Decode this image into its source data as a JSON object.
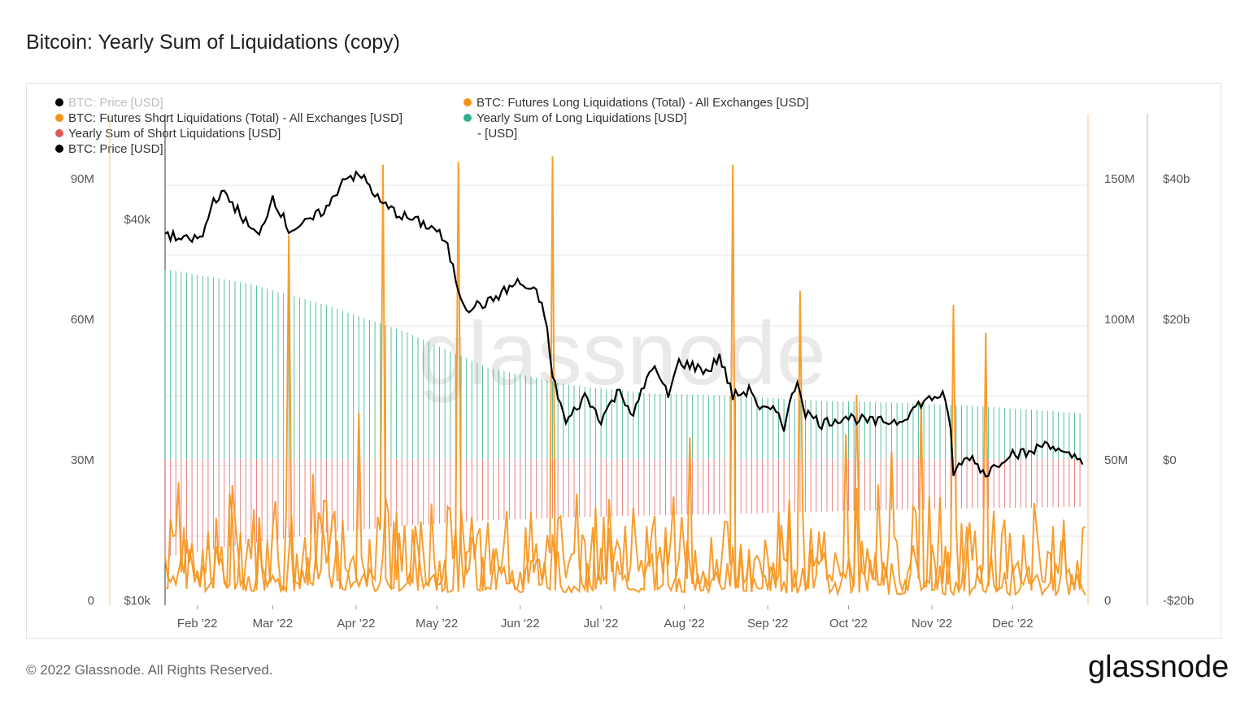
{
  "title": "Bitcoin: Yearly Sum of Liquidations (copy)",
  "footer": "© 2022 Glassnode. All Rights Reserved.",
  "brand": "glassnode",
  "watermark": "glassnode",
  "colors": {
    "price": "#000000",
    "long_liq": "#f7931a",
    "short_liq": "#f7931a",
    "yearly_long": "#2fb08e",
    "yearly_short": "#e05a5a"
  },
  "legend": [
    {
      "label": "BTC: Price [USD]",
      "color": "#000000",
      "faded": true
    },
    {
      "label": "BTC: Futures Long Liquidations (Total) - All Exchanges [USD]",
      "color": "#f7931a",
      "faded": false
    },
    {
      "label": "BTC: Futures Short Liquidations (Total) - All Exchanges [USD]",
      "color": "#f7931a",
      "faded": false
    },
    {
      "label": "Yearly Sum of Long Liquidations [USD]",
      "color": "#2fb08e",
      "faded": false
    },
    {
      "label": "- [USD]",
      "color": "",
      "faded": false
    },
    {
      "label": "Yearly Sum of Short Liquidations [USD]",
      "color": "#e05a5a",
      "faded": false
    },
    {
      "label": "BTC: Price [USD]",
      "color": "#000000",
      "faded": false
    }
  ],
  "chart_data": {
    "type": "line",
    "x_tick_labels": [
      "Feb '22",
      "Mar '22",
      "Apr '22",
      "May '22",
      "Jun '22",
      "Jul '22",
      "Aug '22",
      "Sep '22",
      "Oct '22",
      "Nov '22",
      "Dec '22"
    ],
    "axes": {
      "left_liquidations": {
        "ticks": [
          "90M",
          "60M",
          "30M",
          "0"
        ],
        "range": [
          0,
          90000000
        ]
      },
      "left_price": {
        "ticks": [
          "$40k",
          "$10k"
        ],
        "scale": "log"
      },
      "right_liquidations": {
        "ticks": [
          "150M",
          "100M",
          "50M",
          "0"
        ],
        "range": [
          0,
          150000000
        ]
      },
      "right_yearly": {
        "ticks": [
          "$40b",
          "$20b",
          "$0",
          "-$20b"
        ],
        "range": [
          -20000000000,
          40000000000
        ]
      }
    },
    "grid": true,
    "legend_position": "top-left",
    "series": [
      {
        "name": "BTC: Price [USD]",
        "axis": "left_price",
        "points": [
          [
            "2022-01-20",
            38000
          ],
          [
            "2022-01-27",
            37000
          ],
          [
            "2022-02-03",
            37500
          ],
          [
            "2022-02-07",
            43000
          ],
          [
            "2022-02-10",
            44000
          ],
          [
            "2022-02-14",
            42500
          ],
          [
            "2022-02-20",
            39000
          ],
          [
            "2022-02-24",
            37500
          ],
          [
            "2022-03-01",
            43500
          ],
          [
            "2022-03-07",
            38500
          ],
          [
            "2022-03-14",
            39500
          ],
          [
            "2022-03-22",
            42000
          ],
          [
            "2022-03-28",
            47000
          ],
          [
            "2022-04-04",
            46500
          ],
          [
            "2022-04-10",
            42500
          ],
          [
            "2022-04-18",
            40500
          ],
          [
            "2022-04-25",
            39500
          ],
          [
            "2022-05-01",
            38500
          ],
          [
            "2022-05-05",
            36000
          ],
          [
            "2022-05-09",
            31000
          ],
          [
            "2022-05-12",
            29000
          ],
          [
            "2022-05-20",
            29500
          ],
          [
            "2022-05-31",
            31800
          ],
          [
            "2022-06-07",
            30500
          ],
          [
            "2022-06-10",
            28500
          ],
          [
            "2022-06-13",
            22500
          ],
          [
            "2022-06-18",
            19000
          ],
          [
            "2022-06-25",
            21000
          ],
          [
            "2022-07-01",
            19300
          ],
          [
            "2022-07-08",
            21500
          ],
          [
            "2022-07-13",
            19500
          ],
          [
            "2022-07-20",
            23500
          ],
          [
            "2022-07-26",
            21000
          ],
          [
            "2022-07-30",
            23800
          ],
          [
            "2022-08-10",
            23000
          ],
          [
            "2022-08-14",
            24300
          ],
          [
            "2022-08-19",
            21000
          ],
          [
            "2022-08-26",
            21500
          ],
          [
            "2022-08-29",
            20000
          ],
          [
            "2022-09-05",
            19800
          ],
          [
            "2022-09-07",
            18800
          ],
          [
            "2022-09-12",
            22300
          ],
          [
            "2022-09-15",
            19800
          ],
          [
            "2022-09-21",
            19000
          ],
          [
            "2022-09-30",
            19500
          ],
          [
            "2022-10-10",
            19100
          ],
          [
            "2022-10-20",
            19200
          ],
          [
            "2022-10-28",
            20500
          ],
          [
            "2022-11-05",
            21200
          ],
          [
            "2022-11-08",
            18500
          ],
          [
            "2022-11-09",
            15900
          ],
          [
            "2022-11-15",
            16900
          ],
          [
            "2022-11-21",
            15800
          ],
          [
            "2022-11-30",
            17100
          ],
          [
            "2022-12-07",
            17000
          ],
          [
            "2022-12-14",
            17800
          ],
          [
            "2022-12-20",
            16900
          ],
          [
            "2022-12-27",
            16700
          ]
        ]
      },
      {
        "name": "BTC: Futures Long Liquidations (Total) - All Exchanges [USD]",
        "axis": "right_liquidations",
        "spikes": [
          [
            "2022-03-07",
            130000000
          ],
          [
            "2022-04-11",
            155000000
          ],
          [
            "2022-05-09",
            156000000
          ],
          [
            "2022-06-13",
            158000000
          ],
          [
            "2022-08-19",
            155000000
          ],
          [
            "2022-09-13",
            110000000
          ],
          [
            "2022-11-09",
            105000000
          ],
          [
            "2022-11-21",
            95000000
          ]
        ]
      },
      {
        "name": "BTC: Futures Short Liquidations (Total) - All Exchanges [USD]",
        "axis": "left_liquidations",
        "typical_range": [
          1000000,
          45000000
        ]
      },
      {
        "name": "Yearly Sum of Long Liquidations [USD]",
        "axis": "right_yearly",
        "points": [
          [
            "2022-01-20",
            27000000000
          ],
          [
            "2022-02-20",
            25000000000
          ],
          [
            "2022-03-20",
            22000000000
          ],
          [
            "2022-04-20",
            18000000000
          ],
          [
            "2022-05-20",
            13000000000
          ],
          [
            "2022-06-20",
            10500000000
          ],
          [
            "2022-07-20",
            9300000000
          ],
          [
            "2022-08-20",
            9000000000
          ],
          [
            "2022-09-20",
            8300000000
          ],
          [
            "2022-10-20",
            8000000000
          ],
          [
            "2022-11-20",
            7500000000
          ],
          [
            "2022-12-27",
            6500000000
          ]
        ]
      },
      {
        "name": "Yearly Sum of Short Liquidations [USD]",
        "axis": "right_yearly",
        "points": [
          [
            "2022-01-20",
            -14000000000
          ],
          [
            "2022-02-20",
            -12000000000
          ],
          [
            "2022-03-20",
            -10500000000
          ],
          [
            "2022-04-20",
            -9500000000
          ],
          [
            "2022-05-20",
            -8700000000
          ],
          [
            "2022-06-20",
            -8300000000
          ],
          [
            "2022-07-20",
            -8000000000
          ],
          [
            "2022-08-20",
            -7800000000
          ],
          [
            "2022-09-20",
            -7500000000
          ],
          [
            "2022-10-20",
            -7200000000
          ],
          [
            "2022-11-20",
            -7000000000
          ],
          [
            "2022-12-27",
            -6800000000
          ]
        ]
      }
    ]
  }
}
